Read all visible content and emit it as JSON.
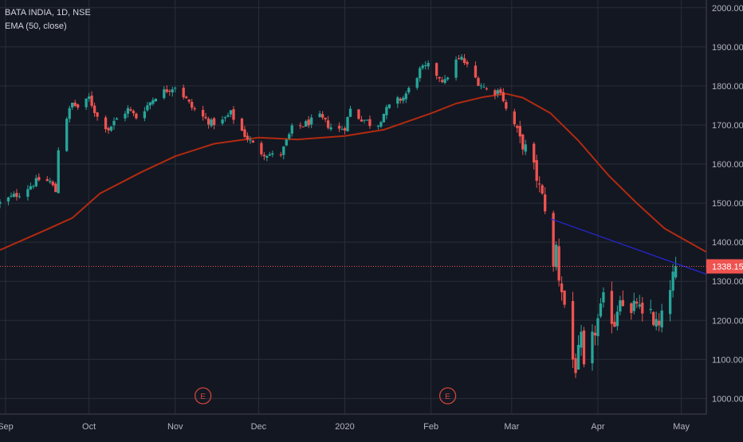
{
  "legend": {
    "symbol_line": "BATA INDIA, 1D, NSE",
    "indicator_line": "EMA (50, close)"
  },
  "colors": {
    "background": "#131722",
    "grid": "#2a2e39",
    "text": "#b2b5be",
    "up": "#26a69a",
    "down": "#ef5350",
    "ema": "#b22a10",
    "trendline": "#2727d8",
    "price_line": "#ef5350",
    "price_label_bg": "#ef5350",
    "event_marker": "#d0453c"
  },
  "chart_data": {
    "type": "candlestick",
    "ylim": [
      960,
      2020
    ],
    "y_ticks": [
      "1000.00",
      "1100.00",
      "1200.00",
      "1300.00",
      "1400.00",
      "1500.00",
      "1600.00",
      "1700.00",
      "1800.00",
      "1900.00",
      "2000.00"
    ],
    "y_tick_values": [
      1000,
      1100,
      1200,
      1300,
      1400,
      1500,
      1600,
      1700,
      1800,
      1900,
      2000
    ],
    "x_range": [
      "2019-08-30",
      "2020-05-10"
    ],
    "x_ticks": [
      {
        "label": "Sep",
        "date": "2019-09-01"
      },
      {
        "label": "Oct",
        "date": "2019-10-01"
      },
      {
        "label": "Nov",
        "date": "2019-11-01"
      },
      {
        "label": "Dec",
        "date": "2019-12-01"
      },
      {
        "label": "2020",
        "date": "2020-01-01"
      },
      {
        "label": "Feb",
        "date": "2020-02-01"
      },
      {
        "label": "Mar",
        "date": "2020-03-01"
      },
      {
        "label": "Apr",
        "date": "2020-04-01"
      },
      {
        "label": "May",
        "date": "2020-05-01"
      }
    ],
    "last_price": 1338.15,
    "last_price_label": "1338.15",
    "close_path": [
      [
        "2019-08-30",
        1500
      ],
      [
        "2019-09-03",
        1515
      ],
      [
        "2019-09-06",
        1525
      ],
      [
        "2019-09-10",
        1545
      ],
      [
        "2019-09-13",
        1560
      ],
      [
        "2019-09-17",
        1555
      ],
      [
        "2019-09-19",
        1530
      ],
      [
        "2019-09-20",
        1640
      ],
      [
        "2019-09-23",
        1720
      ],
      [
        "2019-09-25",
        1755
      ],
      [
        "2019-09-28",
        1740
      ],
      [
        "2019-10-01",
        1770
      ],
      [
        "2019-10-04",
        1720
      ],
      [
        "2019-10-08",
        1690
      ],
      [
        "2019-10-11",
        1715
      ],
      [
        "2019-10-15",
        1740
      ],
      [
        "2019-10-18",
        1720
      ],
      [
        "2019-10-22",
        1750
      ],
      [
        "2019-10-25",
        1775
      ],
      [
        "2019-10-29",
        1790
      ],
      [
        "2019-11-01",
        1800
      ],
      [
        "2019-11-04",
        1775
      ],
      [
        "2019-11-07",
        1745
      ],
      [
        "2019-11-11",
        1720
      ],
      [
        "2019-11-14",
        1705
      ],
      [
        "2019-11-18",
        1710
      ],
      [
        "2019-11-21",
        1730
      ],
      [
        "2019-11-23",
        1705
      ],
      [
        "2019-11-26",
        1675
      ],
      [
        "2019-11-29",
        1650
      ],
      [
        "2019-12-02",
        1630
      ],
      [
        "2019-12-05",
        1625
      ],
      [
        "2019-12-08",
        1615
      ],
      [
        "2019-12-10",
        1640
      ],
      [
        "2019-12-13",
        1690
      ],
      [
        "2019-12-17",
        1700
      ],
      [
        "2019-12-20",
        1710
      ],
      [
        "2019-12-23",
        1720
      ],
      [
        "2019-12-26",
        1700
      ],
      [
        "2019-12-29",
        1685
      ],
      [
        "2020-01-01",
        1695
      ],
      [
        "2020-01-03",
        1740
      ],
      [
        "2020-01-06",
        1720
      ],
      [
        "2020-01-09",
        1710
      ],
      [
        "2020-01-12",
        1690
      ],
      [
        "2020-01-15",
        1730
      ],
      [
        "2020-01-18",
        1755
      ],
      [
        "2020-01-22",
        1770
      ],
      [
        "2020-01-25",
        1800
      ],
      [
        "2020-01-28",
        1840
      ],
      [
        "2020-01-31",
        1850
      ],
      [
        "2020-02-03",
        1830
      ],
      [
        "2020-02-06",
        1810
      ],
      [
        "2020-02-09",
        1860
      ],
      [
        "2020-02-12",
        1870
      ],
      [
        "2020-02-15",
        1840
      ],
      [
        "2020-02-18",
        1810
      ],
      [
        "2020-02-21",
        1790
      ],
      [
        "2020-02-24",
        1785
      ],
      [
        "2020-02-26",
        1790
      ],
      [
        "2020-02-28",
        1740
      ],
      [
        "2020-03-02",
        1700
      ],
      [
        "2020-03-04",
        1660
      ],
      [
        "2020-03-06",
        1640
      ],
      [
        "2020-03-09",
        1590
      ],
      [
        "2020-03-11",
        1540
      ],
      [
        "2020-03-13",
        1490
      ],
      [
        "2020-03-15",
        1400
      ],
      [
        "2020-03-16",
        1330
      ],
      [
        "2020-03-17",
        1390
      ],
      [
        "2020-03-18",
        1310
      ],
      [
        "2020-03-19",
        1280
      ],
      [
        "2020-03-21",
        1200
      ],
      [
        "2020-03-23",
        1100
      ],
      [
        "2020-03-24",
        1080
      ],
      [
        "2020-03-26",
        1150
      ],
      [
        "2020-03-27",
        1070
      ],
      [
        "2020-03-28",
        1100
      ],
      [
        "2020-03-30",
        1150
      ],
      [
        "2020-04-01",
        1200
      ],
      [
        "2020-04-03",
        1250
      ],
      [
        "2020-04-05",
        1220
      ],
      [
        "2020-04-07",
        1195
      ],
      [
        "2020-04-09",
        1270
      ],
      [
        "2020-04-11",
        1230
      ],
      [
        "2020-04-13",
        1210
      ],
      [
        "2020-04-15",
        1250
      ],
      [
        "2020-04-17",
        1200
      ],
      [
        "2020-04-19",
        1255
      ],
      [
        "2020-04-21",
        1200
      ],
      [
        "2020-04-23",
        1180
      ],
      [
        "2020-04-25",
        1230
      ],
      [
        "2020-04-27",
        1290
      ],
      [
        "2020-04-29",
        1338
      ]
    ],
    "ema_50": [
      [
        "2019-08-30",
        1380
      ],
      [
        "2019-09-15",
        1430
      ],
      [
        "2019-09-25",
        1462
      ],
      [
        "2019-10-05",
        1525
      ],
      [
        "2019-10-20",
        1580
      ],
      [
        "2019-11-01",
        1620
      ],
      [
        "2019-11-15",
        1652
      ],
      [
        "2019-12-01",
        1668
      ],
      [
        "2019-12-15",
        1663
      ],
      [
        "2020-01-01",
        1672
      ],
      [
        "2020-01-15",
        1688
      ],
      [
        "2020-02-01",
        1730
      ],
      [
        "2020-02-10",
        1755
      ],
      [
        "2020-02-20",
        1772
      ],
      [
        "2020-02-28",
        1780
      ],
      [
        "2020-03-05",
        1770
      ],
      [
        "2020-03-15",
        1730
      ],
      [
        "2020-03-25",
        1660
      ],
      [
        "2020-04-05",
        1570
      ],
      [
        "2020-04-15",
        1500
      ],
      [
        "2020-04-25",
        1435
      ],
      [
        "2020-05-05",
        1395
      ],
      [
        "2020-05-10",
        1375
      ]
    ],
    "trendline": {
      "from": [
        "2020-03-15",
        1460
      ],
      "to": [
        "2020-05-10",
        1318
      ]
    },
    "events": [
      {
        "label": "E",
        "date": "2019-11-11"
      },
      {
        "label": "E",
        "date": "2020-02-07"
      }
    ]
  }
}
